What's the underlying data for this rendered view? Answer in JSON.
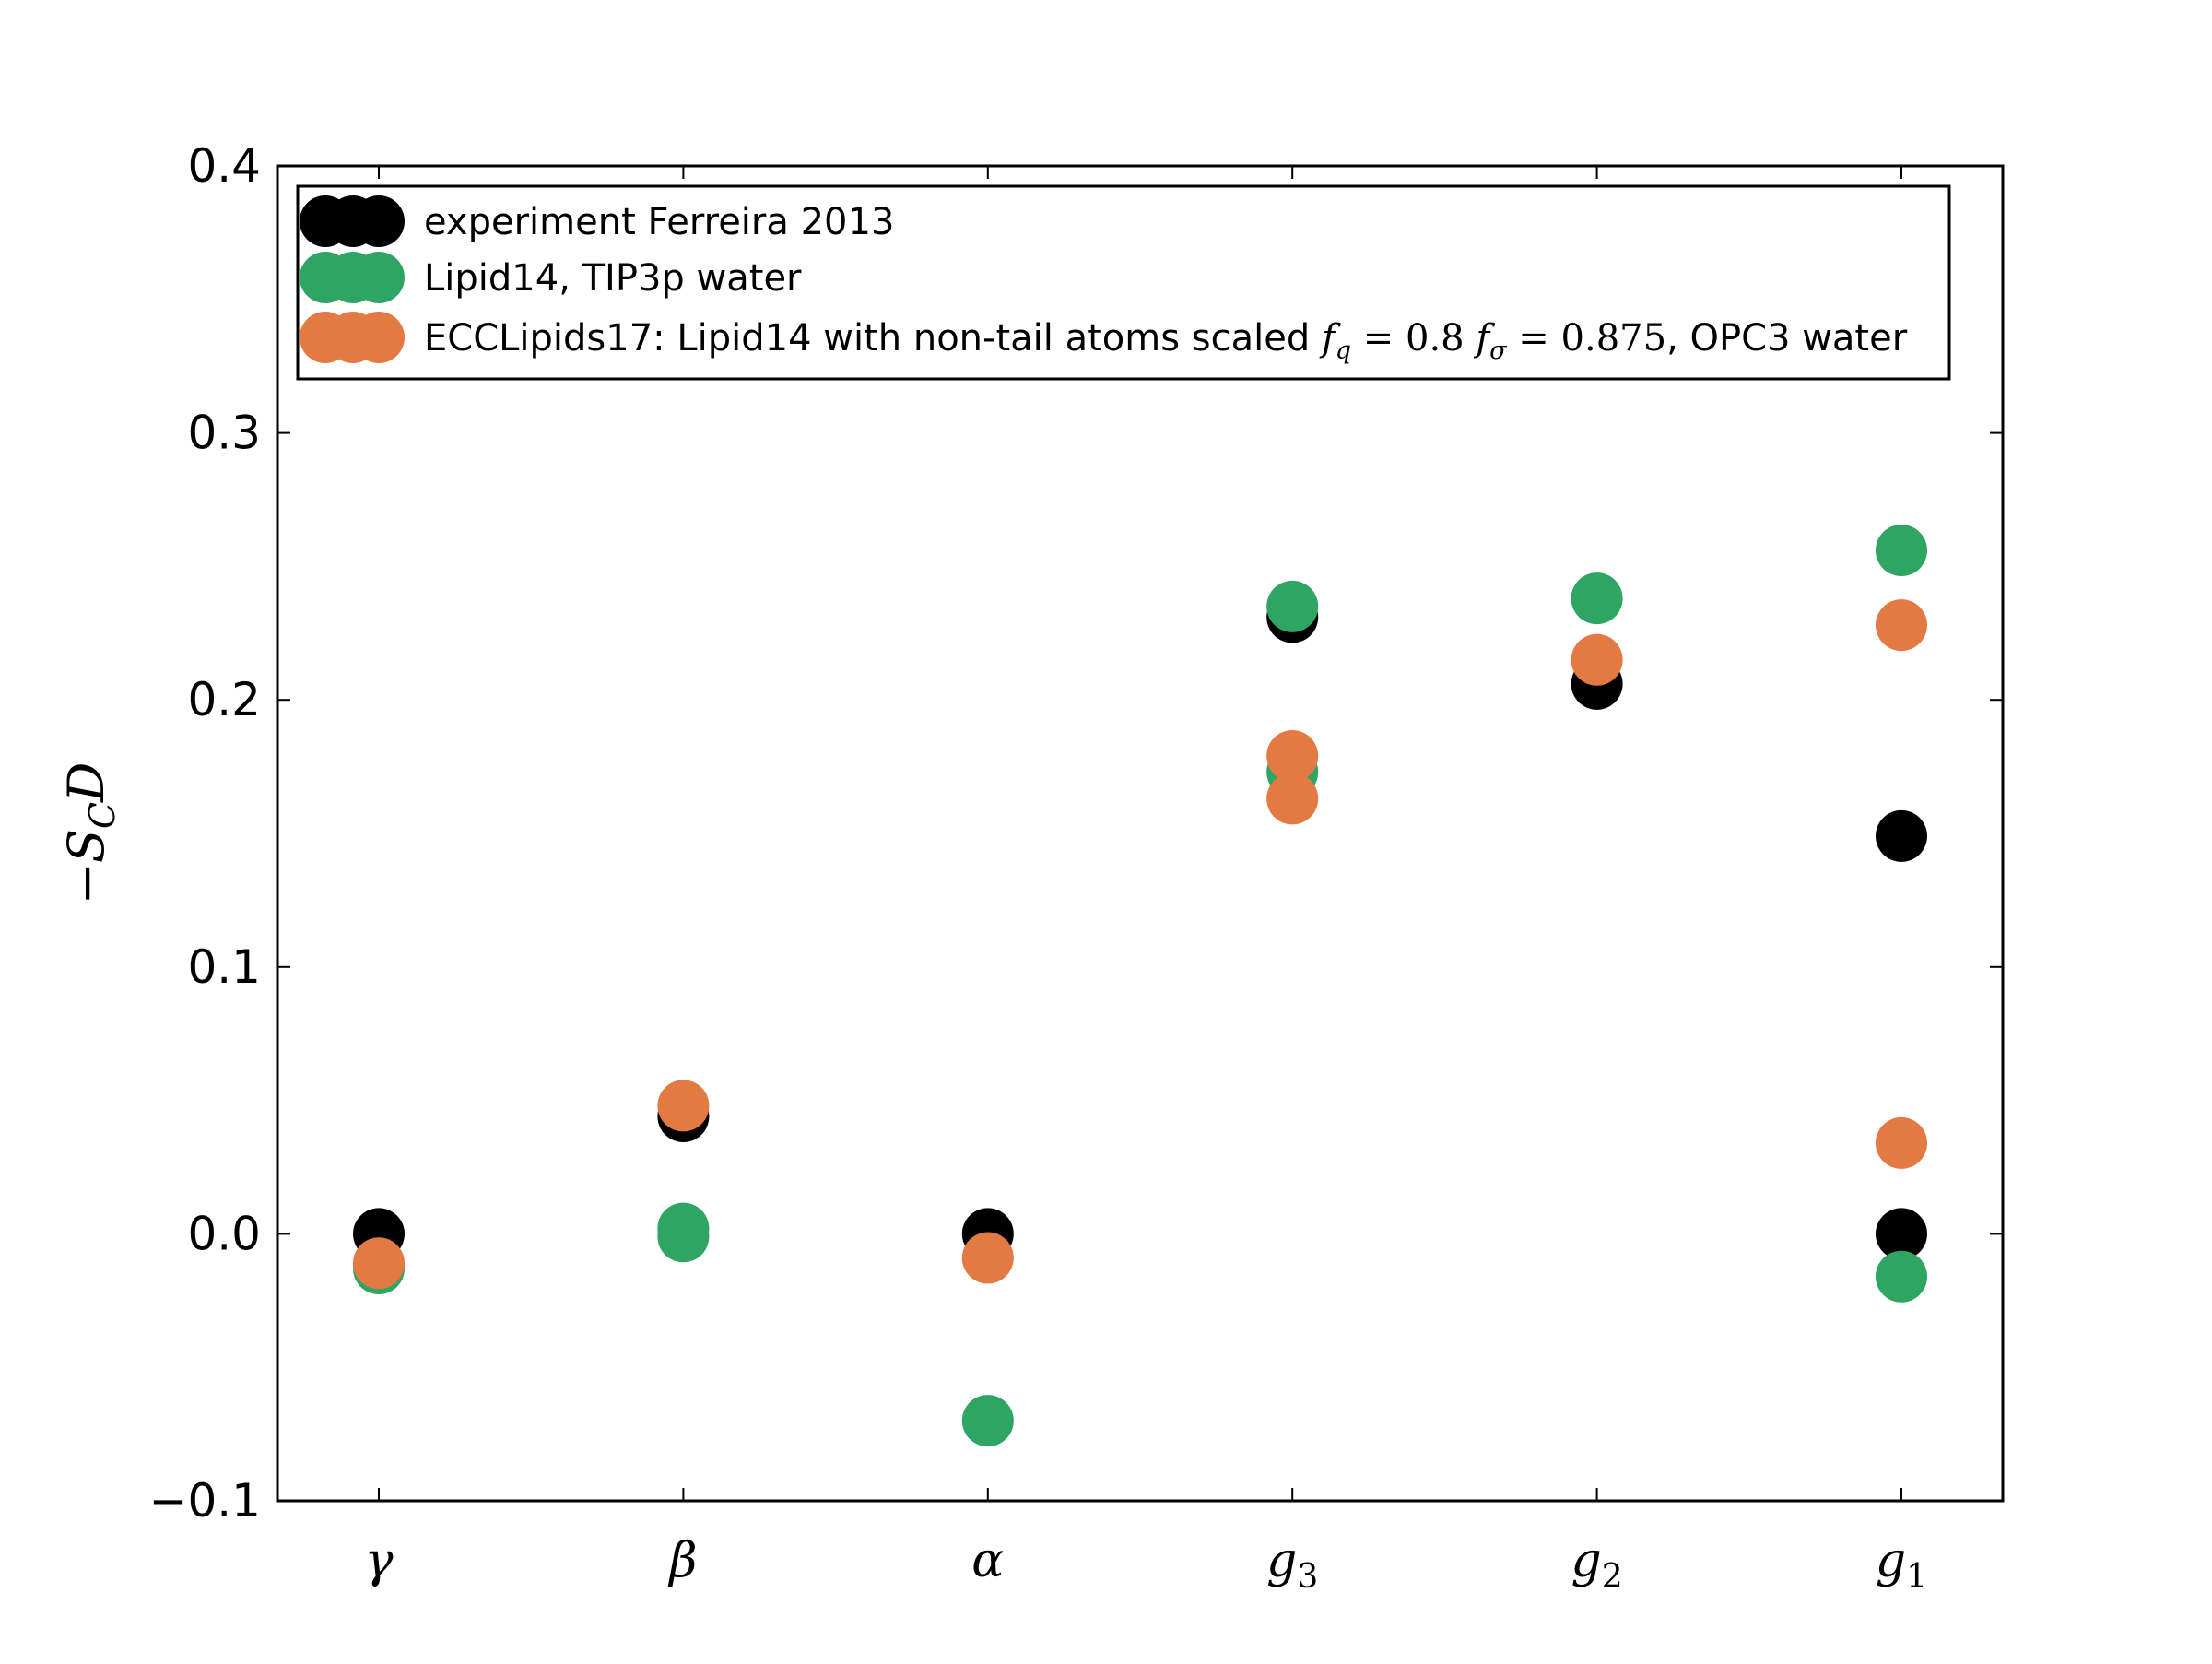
{
  "chart_data": {
    "type": "scatter",
    "ylabel": "−S_CD",
    "ylim": [
      -0.1,
      0.4
    ],
    "yticks": [
      -0.1,
      0.0,
      0.1,
      0.2,
      0.3,
      0.4
    ],
    "ytick_labels": [
      "−0.1",
      "0.0",
      "0.1",
      "0.2",
      "0.3",
      "0.4"
    ],
    "categories": [
      {
        "base": "γ",
        "sub": ""
      },
      {
        "base": "β",
        "sub": ""
      },
      {
        "base": "α",
        "sub": ""
      },
      {
        "base": "g",
        "sub": "3"
      },
      {
        "base": "g",
        "sub": "2"
      },
      {
        "base": "g",
        "sub": "1"
      }
    ],
    "grid": false,
    "legend_position": "top",
    "series": [
      {
        "name": "experiment Ferreira 2013",
        "color": "#000000",
        "points": [
          [
            0,
            0.0
          ],
          [
            1,
            0.044
          ],
          [
            2,
            0.0
          ],
          [
            3,
            0.231
          ],
          [
            4,
            0.206
          ],
          [
            5,
            0.149
          ],
          [
            5,
            0.0
          ]
        ]
      },
      {
        "name": "Lipid14, TIP3p water",
        "color": "#2ea562",
        "points": [
          [
            0,
            -0.013
          ],
          [
            1,
            0.002
          ],
          [
            1,
            -0.001
          ],
          [
            2,
            -0.07
          ],
          [
            3,
            0.235
          ],
          [
            3,
            0.173
          ],
          [
            4,
            0.238
          ],
          [
            5,
            0.256
          ],
          [
            5,
            -0.016
          ]
        ]
      },
      {
        "name": "ECCLipids17: Lipid14 with non-tail atoms scaled f_q = 0.8 f_σ = 0.875, OPC3 water",
        "color": "#e37a44",
        "points": [
          [
            0,
            -0.011
          ],
          [
            1,
            0.048
          ],
          [
            2,
            -0.009
          ],
          [
            3,
            0.179
          ],
          [
            3,
            0.163
          ],
          [
            4,
            0.215
          ],
          [
            5,
            0.228
          ],
          [
            5,
            0.034
          ]
        ]
      }
    ],
    "legend": {
      "entries": [
        {
          "text": "experiment Ferreira 2013",
          "color": "#000000"
        },
        {
          "text": "Lipid14, TIP3p water",
          "color": "#2ea562"
        },
        {
          "text_prefix": "ECCLipids17: Lipid14 with non-tail atoms scaled ",
          "math1_base": "f",
          "math1_sub": "q",
          "math1_rest": " = 0.8 ",
          "math2_base": "f",
          "math2_sub": "σ",
          "math2_rest": " = 0.875",
          "text_suffix": ", OPC3 water",
          "color": "#e37a44"
        }
      ]
    }
  }
}
